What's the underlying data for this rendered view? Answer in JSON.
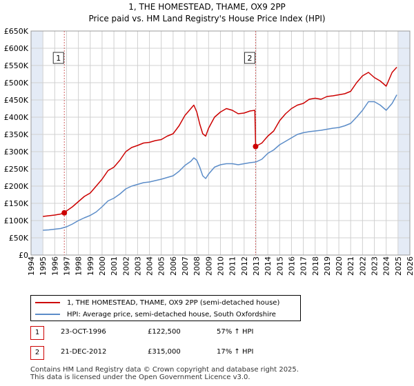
{
  "title_line1": "1, THE HOMESTEAD, THAME, OX9 2PP",
  "title_line2": "Price paid vs. HM Land Registry's House Price Index (HPI)",
  "colors": {
    "property": "#cc0000",
    "hpi": "#5b8cc8",
    "shade": "#e4ebf6",
    "grid": "#d0d0d0",
    "marker": "#cc0000"
  },
  "legend": {
    "property_label": "1, THE HOMESTEAD, THAME, OX9 2PP (semi-detached house)",
    "hpi_label": "HPI: Average price, semi-detached house, South Oxfordshire"
  },
  "sales": [
    {
      "num": "1",
      "date": "23-OCT-1996",
      "price": "£122,500",
      "hpi_change": "57% ↑ HPI"
    },
    {
      "num": "2",
      "date": "21-DEC-2012",
      "price": "£315,000",
      "hpi_change": "17% ↑ HPI"
    }
  ],
  "footer": {
    "line1": "Contains HM Land Registry data © Crown copyright and database right 2025.",
    "line2": "This data is licensed under the Open Government Licence v3.0."
  },
  "chart_data": {
    "type": "line",
    "title": "1, THE HOMESTEAD, THAME, OX9 2PP — Price paid vs. HM Land Registry's House Price Index (HPI)",
    "xlim": [
      1994,
      2026
    ],
    "ylim": [
      0,
      650000
    ],
    "x_ticks": [
      "1994",
      "1995",
      "1996",
      "1997",
      "1998",
      "1999",
      "2000",
      "2001",
      "2002",
      "2003",
      "2004",
      "2005",
      "2006",
      "2007",
      "2008",
      "2009",
      "2010",
      "2011",
      "2012",
      "2013",
      "2014",
      "2015",
      "2016",
      "2017",
      "2018",
      "2019",
      "2020",
      "2021",
      "2022",
      "2023",
      "2024",
      "2025",
      "2026"
    ],
    "y_ticks": [
      {
        "value": 0,
        "label": "£0"
      },
      {
        "value": 50000,
        "label": "£50K"
      },
      {
        "value": 100000,
        "label": "£100K"
      },
      {
        "value": 150000,
        "label": "£150K"
      },
      {
        "value": 200000,
        "label": "£200K"
      },
      {
        "value": 250000,
        "label": "£250K"
      },
      {
        "value": 300000,
        "label": "£300K"
      },
      {
        "value": 350000,
        "label": "£350K"
      },
      {
        "value": 400000,
        "label": "£400K"
      },
      {
        "value": 450000,
        "label": "£450K"
      },
      {
        "value": 500000,
        "label": "£500K"
      },
      {
        "value": 550000,
        "label": "£550K"
      },
      {
        "value": 600000,
        "label": "£600K"
      },
      {
        "value": 650000,
        "label": "£650K"
      }
    ],
    "shaded_ranges": [
      [
        1994,
        1995
      ],
      [
        2025,
        2026
      ]
    ],
    "annotations": [
      {
        "label": "1",
        "x": 1996.81,
        "y": 122500
      },
      {
        "label": "2",
        "x": 2012.97,
        "y": 315000
      }
    ],
    "series": [
      {
        "name": "1, THE HOMESTEAD, THAME, OX9 2PP (semi-detached house)",
        "color": "#cc0000",
        "x": [
          1995,
          1995.5,
          1996,
          1996.5,
          1996.81,
          1997,
          1997.5,
          1998,
          1998.5,
          1999,
          1999.5,
          2000,
          2000.5,
          2001,
          2001.5,
          2002,
          2002.5,
          2003,
          2003.5,
          2004,
          2004.5,
          2005,
          2005.5,
          2006,
          2006.5,
          2007,
          2007.5,
          2007.75,
          2008,
          2008.25,
          2008.5,
          2008.75,
          2009,
          2009.5,
          2010,
          2010.5,
          2011,
          2011.5,
          2012,
          2012.5,
          2012.9,
          2012.97,
          2013.5,
          2014,
          2014.5,
          2015,
          2015.5,
          2016,
          2016.5,
          2017,
          2017.5,
          2018,
          2018.5,
          2019,
          2019.5,
          2020,
          2020.5,
          2021,
          2021.5,
          2022,
          2022.5,
          2023,
          2023.5,
          2024,
          2024.5,
          2024.9
        ],
        "values": [
          112000,
          114000,
          116000,
          119000,
          122500,
          128000,
          140000,
          155000,
          170000,
          180000,
          200000,
          220000,
          245000,
          255000,
          275000,
          300000,
          312000,
          318000,
          325000,
          327000,
          332000,
          335000,
          345000,
          352000,
          375000,
          405000,
          425000,
          435000,
          415000,
          380000,
          352000,
          345000,
          368000,
          400000,
          415000,
          425000,
          420000,
          410000,
          412000,
          418000,
          420000,
          315000,
          325000,
          345000,
          360000,
          390000,
          410000,
          425000,
          435000,
          440000,
          452000,
          455000,
          452000,
          460000,
          462000,
          465000,
          468000,
          475000,
          500000,
          520000,
          530000,
          515000,
          505000,
          490000,
          530000,
          545000
        ]
      },
      {
        "name": "HPI: Average price, semi-detached house, South Oxfordshire",
        "color": "#5b8cc8",
        "x": [
          1995,
          1995.5,
          1996,
          1996.5,
          1997,
          1997.5,
          1998,
          1998.5,
          1999,
          1999.5,
          2000,
          2000.5,
          2001,
          2001.5,
          2002,
          2002.5,
          2003,
          2003.5,
          2004,
          2004.5,
          2005,
          2005.5,
          2006,
          2006.5,
          2007,
          2007.5,
          2007.75,
          2008,
          2008.25,
          2008.5,
          2008.75,
          2009,
          2009.5,
          2010,
          2010.5,
          2011,
          2011.5,
          2012,
          2012.5,
          2013,
          2013.5,
          2014,
          2014.5,
          2015,
          2015.5,
          2016,
          2016.5,
          2017,
          2017.5,
          2018,
          2018.5,
          2019,
          2019.5,
          2020,
          2020.5,
          2021,
          2021.5,
          2022,
          2022.5,
          2023,
          2023.5,
          2024,
          2024.5,
          2024.9
        ],
        "values": [
          72000,
          73000,
          75000,
          77000,
          82000,
          90000,
          100000,
          108000,
          115000,
          125000,
          140000,
          157000,
          165000,
          177000,
          192000,
          200000,
          205000,
          210000,
          212000,
          216000,
          220000,
          225000,
          230000,
          243000,
          260000,
          272000,
          282000,
          275000,
          255000,
          230000,
          222000,
          235000,
          255000,
          262000,
          265000,
          265000,
          262000,
          265000,
          268000,
          270000,
          278000,
          295000,
          305000,
          320000,
          330000,
          340000,
          350000,
          355000,
          358000,
          360000,
          362000,
          365000,
          368000,
          370000,
          375000,
          382000,
          400000,
          420000,
          445000,
          445000,
          435000,
          420000,
          440000,
          465000
        ]
      }
    ]
  }
}
